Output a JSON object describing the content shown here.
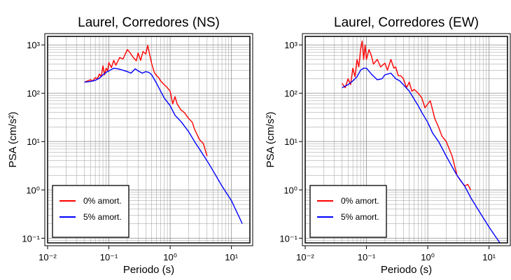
{
  "chart_data": [
    {
      "type": "line",
      "title": "Laurel, Corredores (NS)",
      "xlabel": "Periodo (s)",
      "ylabel": "PSA (cm/s²)",
      "xscale": "log",
      "yscale": "log",
      "xlim": [
        0.01,
        20
      ],
      "ylim": [
        0.08,
        1500
      ],
      "grid": true,
      "legend": "bottom-left",
      "x_tick_labels": [
        "10⁻²",
        "10⁻¹",
        "10⁰",
        "10¹"
      ],
      "y_tick_labels": [
        "10⁻¹",
        "10⁰",
        "10¹",
        "10²",
        "10³"
      ],
      "series": [
        {
          "name": "0% amort.",
          "color": "#ff0000",
          "x": [
            0.04,
            0.05,
            0.055,
            0.06,
            0.065,
            0.07,
            0.075,
            0.08,
            0.085,
            0.09,
            0.095,
            0.1,
            0.11,
            0.12,
            0.13,
            0.15,
            0.17,
            0.2,
            0.22,
            0.25,
            0.28,
            0.3,
            0.33,
            0.36,
            0.4,
            0.43,
            0.45,
            0.5,
            0.55,
            0.6,
            0.65,
            0.7,
            0.8,
            0.9,
            1.0,
            1.1,
            1.2,
            1.3,
            1.5,
            1.7,
            2.0,
            2.3,
            2.5,
            3.0,
            3.5,
            4.0
          ],
          "y": [
            170,
            190,
            180,
            210,
            200,
            250,
            220,
            370,
            240,
            330,
            290,
            430,
            340,
            480,
            380,
            550,
            510,
            800,
            700,
            550,
            470,
            680,
            480,
            730,
            650,
            980,
            750,
            410,
            270,
            230,
            210,
            180,
            150,
            130,
            110,
            60,
            85,
            60,
            45,
            40,
            30,
            25,
            18,
            11,
            9,
            5
          ]
        },
        {
          "name": "5% amort.",
          "color": "#0000ff",
          "x": [
            0.04,
            0.05,
            0.06,
            0.07,
            0.08,
            0.09,
            0.1,
            0.12,
            0.14,
            0.17,
            0.2,
            0.23,
            0.27,
            0.3,
            0.35,
            0.4,
            0.45,
            0.5,
            0.6,
            0.7,
            0.8,
            1.0,
            1.2,
            1.5,
            2.0,
            2.5,
            3.0,
            4.0,
            5.0,
            7.0,
            10.0,
            15.0
          ],
          "y": [
            170,
            175,
            185,
            205,
            240,
            270,
            290,
            330,
            320,
            300,
            280,
            260,
            320,
            290,
            260,
            280,
            270,
            240,
            160,
            110,
            80,
            55,
            35,
            26,
            16,
            10,
            7,
            4,
            2.5,
            1.2,
            0.6,
            0.2
          ]
        }
      ]
    },
    {
      "type": "line",
      "title": "Laurel, Corredores (EW)",
      "xlabel": "Periodo (s)",
      "ylabel": "PSA (cm/s²)",
      "xscale": "log",
      "yscale": "log",
      "xlim": [
        0.01,
        20
      ],
      "ylim": [
        0.08,
        1500
      ],
      "grid": true,
      "legend": "bottom-left",
      "x_tick_labels": [
        "10⁻²",
        "10⁻¹",
        "10⁰",
        "10¹"
      ],
      "y_tick_labels": [
        "10⁻¹",
        "10⁰",
        "10¹",
        "10²",
        "10³"
      ],
      "series": [
        {
          "name": "0% amort.",
          "color": "#ff0000",
          "x": [
            0.04,
            0.045,
            0.05,
            0.055,
            0.06,
            0.065,
            0.07,
            0.075,
            0.08,
            0.085,
            0.09,
            0.095,
            0.1,
            0.11,
            0.12,
            0.13,
            0.15,
            0.17,
            0.2,
            0.22,
            0.25,
            0.28,
            0.3,
            0.33,
            0.36,
            0.4,
            0.45,
            0.5,
            0.55,
            0.6,
            0.7,
            0.8,
            0.9,
            1.0,
            1.1,
            1.3,
            1.5,
            1.7,
            2.0,
            2.5,
            3.0,
            3.5,
            4.0,
            4.5,
            5.0
          ],
          "y": [
            160,
            130,
            200,
            150,
            330,
            220,
            500,
            350,
            800,
            1200,
            500,
            1000,
            500,
            800,
            600,
            400,
            500,
            350,
            420,
            300,
            500,
            330,
            350,
            230,
            230,
            200,
            130,
            170,
            110,
            120,
            100,
            80,
            50,
            60,
            70,
            30,
            20,
            13,
            10,
            5,
            2,
            1.5,
            1.2,
            1.3,
            1.0
          ]
        },
        {
          "name": "5% amort.",
          "color": "#0000ff",
          "x": [
            0.04,
            0.05,
            0.06,
            0.07,
            0.08,
            0.09,
            0.1,
            0.12,
            0.15,
            0.18,
            0.2,
            0.25,
            0.3,
            0.35,
            0.4,
            0.5,
            0.6,
            0.7,
            0.8,
            1.0,
            1.2,
            1.5,
            2.0,
            2.5,
            3.0,
            4.0,
            5.0,
            7.0,
            10.0,
            15.0
          ],
          "y": [
            130,
            150,
            180,
            220,
            300,
            330,
            330,
            250,
            190,
            200,
            240,
            260,
            200,
            180,
            150,
            110,
            75,
            55,
            40,
            25,
            15,
            10,
            5,
            3,
            2,
            1.2,
            0.7,
            0.35,
            0.17,
            0.08
          ]
        }
      ]
    }
  ]
}
